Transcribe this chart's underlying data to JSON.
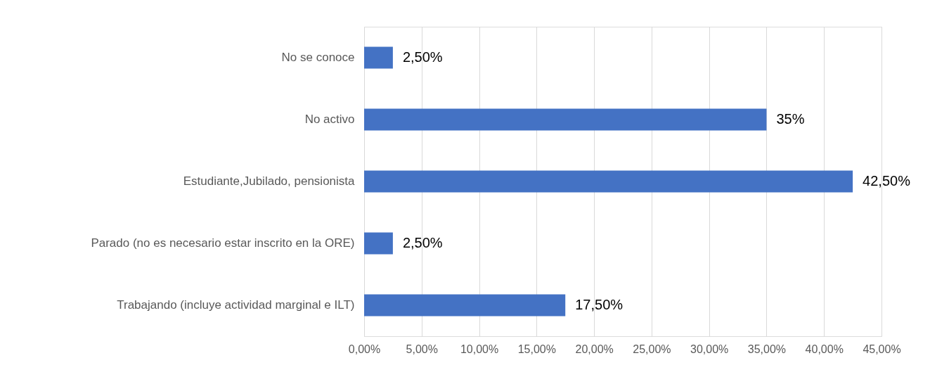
{
  "chart_data": {
    "type": "bar",
    "orientation": "horizontal",
    "categories": [
      "No se conoce",
      "No activo",
      "Estudiante,Jubilado, pensionista",
      "Parado (no es necesario estar inscrito en la ORE)",
      "Trabajando (incluye actividad marginal e ILT)"
    ],
    "values": [
      2.5,
      35,
      42.5,
      2.5,
      17.5
    ],
    "value_labels": [
      "2,50%",
      "35%",
      "42,50%",
      "2,50%",
      "17,50%"
    ],
    "color": "#4472c4",
    "xlim": [
      0,
      45
    ],
    "xticks": [
      {
        "value": 0,
        "label": "0,00%"
      },
      {
        "value": 5,
        "label": "5,00%"
      },
      {
        "value": 10,
        "label": "10,00%"
      },
      {
        "value": 15,
        "label": "15,00%"
      },
      {
        "value": 20,
        "label": "20,00%"
      },
      {
        "value": 25,
        "label": "25,00%"
      },
      {
        "value": 30,
        "label": "30,00%"
      },
      {
        "value": 35,
        "label": "35,00%"
      },
      {
        "value": 40,
        "label": "40,00%"
      },
      {
        "value": 45,
        "label": "45,00%"
      }
    ],
    "grid": "x"
  }
}
